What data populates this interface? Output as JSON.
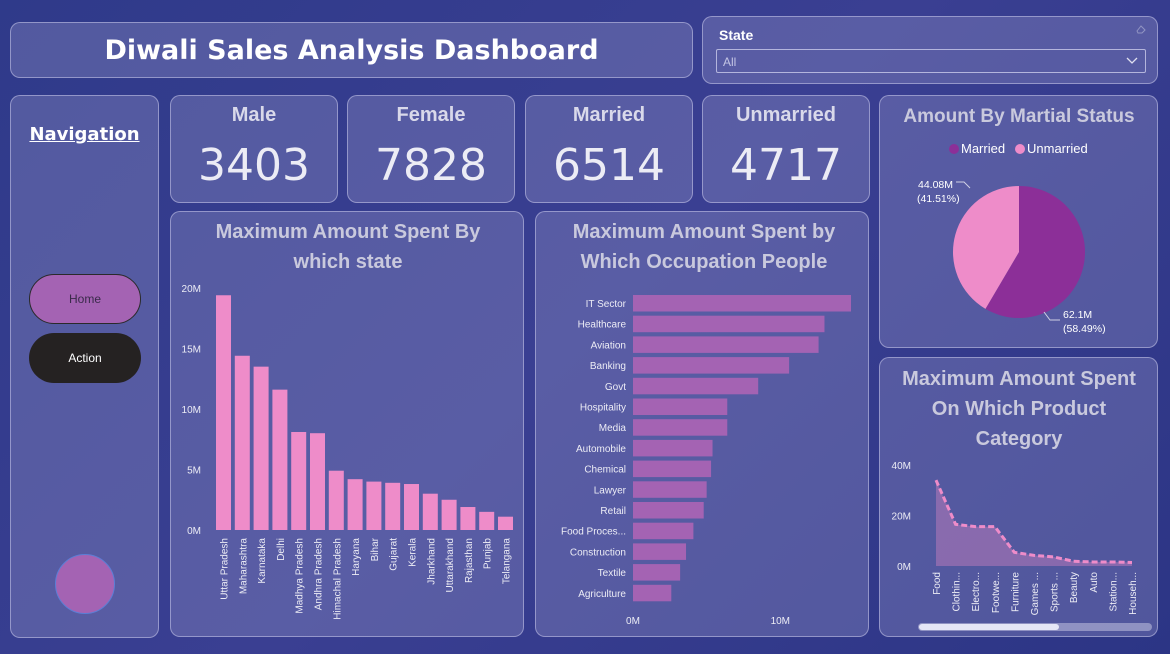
{
  "header": {
    "title": "Diwali Sales Analysis Dashboard"
  },
  "slicer": {
    "label": "State",
    "selected": "All",
    "icons": {
      "clear": "eraser-icon",
      "dropdown": "chevron-down-icon"
    }
  },
  "navigation": {
    "title": "Navigation",
    "buttons": [
      {
        "label": "Home"
      },
      {
        "label": "Action"
      }
    ]
  },
  "kpis": {
    "male": {
      "label": "Male",
      "value": "3403"
    },
    "female": {
      "label": "Female",
      "value": "7828"
    },
    "married": {
      "label": "Married",
      "value": "6514"
    },
    "unmarried": {
      "label": "Unmarried",
      "value": "4717"
    }
  },
  "colors": {
    "bar_pink": "#ee8cc9",
    "bar_purple": "#a463b3",
    "married": "#8c2f98",
    "unmarried": "#ee8cc9",
    "area": "#ee8cc9"
  },
  "chart_data": [
    {
      "id": "state",
      "type": "bar",
      "title": [
        "Maximum Amount Spent By",
        "which state"
      ],
      "categories": [
        "Uttar Pradesh",
        "Maharashtra",
        "Karnataka",
        "Delhi",
        "Madhya Pradesh",
        "Andhra Pradesh",
        "Himachal Pradesh",
        "Haryana",
        "Bihar",
        "Gujarat",
        "Kerala",
        "Jharkhand",
        "Uttarakhand",
        "Rajasthan",
        "Punjab",
        "Telangana"
      ],
      "values": [
        19.4,
        14.4,
        13.5,
        11.6,
        8.1,
        8.0,
        4.9,
        4.2,
        4.0,
        3.9,
        3.8,
        3.0,
        2.5,
        1.9,
        1.5,
        1.1
      ],
      "unit": "M",
      "yticks": [
        "0M",
        "5M",
        "10M",
        "15M",
        "20M"
      ],
      "ylim": [
        0,
        20
      ],
      "color": "#ee8cc9"
    },
    {
      "id": "occupation",
      "type": "bar",
      "orientation": "horizontal",
      "title": [
        "Maximum Amount Spent by",
        "Which Occupation People"
      ],
      "categories": [
        "IT Sector",
        "Healthcare",
        "Aviation",
        "Banking",
        "Govt",
        "Hospitality",
        "Media",
        "Automobile",
        "Chemical",
        "Lawyer",
        "Retail",
        "Food Proces...",
        "Construction",
        "Textile",
        "Agriculture"
      ],
      "values": [
        14.8,
        13.0,
        12.6,
        10.6,
        8.5,
        6.4,
        6.4,
        5.4,
        5.3,
        5.0,
        4.8,
        4.1,
        3.6,
        3.2,
        2.6
      ],
      "unit": "M",
      "xticks": [
        "0M",
        "10M"
      ],
      "xlim": [
        0,
        14.8
      ],
      "color": "#a463b3"
    },
    {
      "id": "marital",
      "type": "pie",
      "title": "Amount By Martial Status",
      "legend": [
        "Married",
        "Unmarried"
      ],
      "slices": [
        {
          "name": "Married",
          "value": 62.1,
          "label": "62.1M",
          "pct": "(58.49%)",
          "color": "#8c2f98"
        },
        {
          "name": "Unmarried",
          "value": 44.08,
          "label": "44.08M",
          "pct": "(41.51%)",
          "color": "#ee8cc9"
        }
      ]
    },
    {
      "id": "product",
      "type": "area",
      "title": [
        "Maximum Amount Spent",
        "On Which Product",
        "Category"
      ],
      "categories": [
        "Food",
        "Clothin...",
        "Electro...",
        "Footwe...",
        "Furniture",
        "Games ...",
        "Sports ...",
        "Beauty",
        "Auto",
        "Station...",
        "Househ..."
      ],
      "values": [
        34,
        16.5,
        15.6,
        15.6,
        5.4,
        4.2,
        3.6,
        1.9,
        1.6,
        1.6,
        1.4
      ],
      "unit": "M",
      "yticks": [
        "0M",
        "20M",
        "40M"
      ],
      "ylim": [
        0,
        40
      ],
      "color": "#ee8cc9"
    }
  ]
}
